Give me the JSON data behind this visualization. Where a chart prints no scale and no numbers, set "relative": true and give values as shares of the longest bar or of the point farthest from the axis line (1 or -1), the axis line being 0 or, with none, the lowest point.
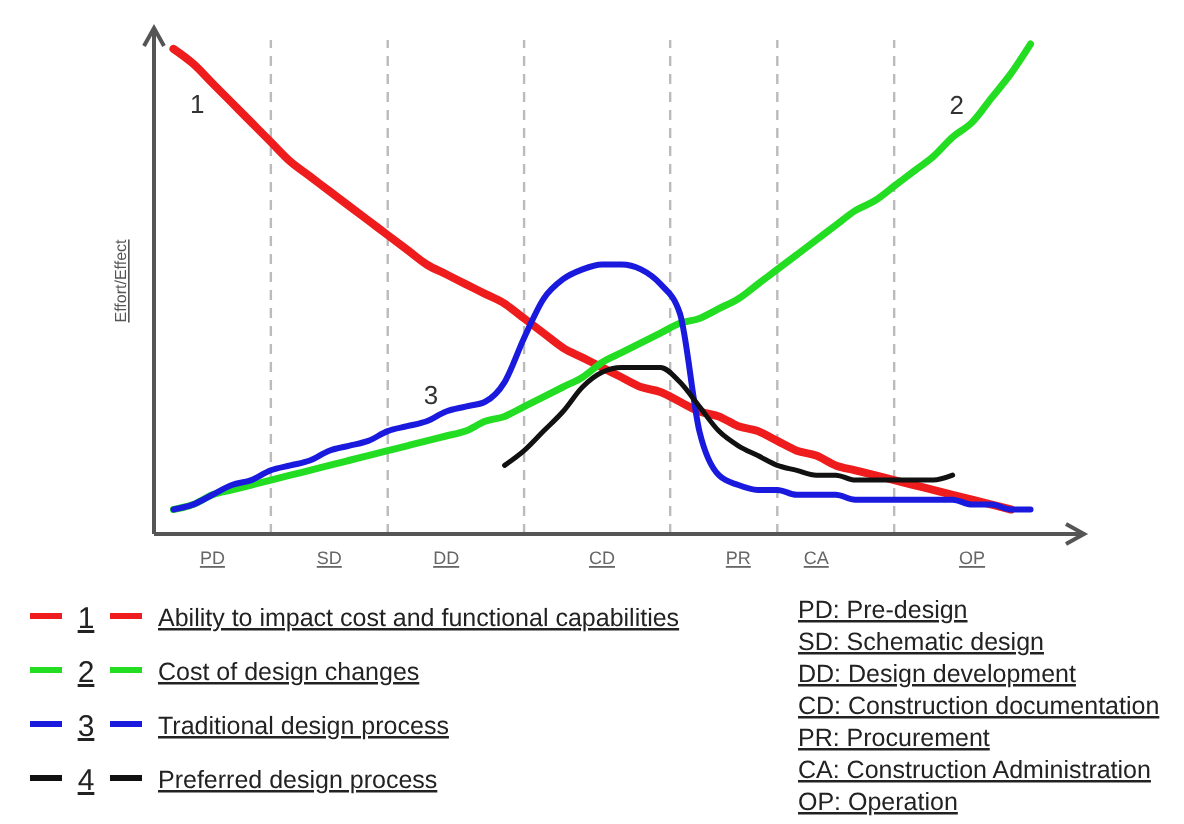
{
  "chart_data": {
    "type": "line",
    "relative": true,
    "ylabel": "Effort/Effect",
    "categories": [
      null,
      null,
      null,
      "PD",
      null,
      null,
      null,
      null,
      null,
      "SD",
      null,
      null,
      null,
      null,
      null,
      "DD",
      null,
      null,
      null,
      null,
      null,
      null,
      null,
      "CD",
      null,
      null,
      null,
      null,
      null,
      null,
      "PR",
      null,
      null,
      null,
      "CA",
      null,
      null,
      null,
      null,
      null,
      null,
      null,
      "OP",
      null,
      null,
      null,
      null
    ],
    "series": [
      {
        "name": "Ability to impact cost and functional capabilities",
        "color": "#ee1c1c",
        "values": [
          null,
          0.99,
          0.96,
          0.92,
          0.88,
          0.84,
          0.8,
          0.76,
          0.73,
          0.7,
          0.67,
          0.64,
          0.61,
          0.58,
          0.55,
          0.53,
          0.51,
          0.49,
          0.47,
          0.44,
          0.41,
          0.38,
          0.36,
          0.34,
          0.32,
          0.3,
          0.29,
          0.27,
          0.25,
          0.24,
          0.22,
          0.21,
          0.19,
          0.17,
          0.16,
          0.14,
          0.13,
          0.12,
          0.11,
          0.1,
          0.09,
          0.08,
          0.07,
          0.06,
          0.05,
          null,
          null
        ]
      },
      {
        "name": "Cost of design changes",
        "color": "#22dd22",
        "values": [
          null,
          0.05,
          0.06,
          0.08,
          0.09,
          0.1,
          0.11,
          0.12,
          0.13,
          0.14,
          0.15,
          0.16,
          0.17,
          0.18,
          0.19,
          0.2,
          0.21,
          0.23,
          0.24,
          0.26,
          0.28,
          0.3,
          0.32,
          0.35,
          0.37,
          0.39,
          0.41,
          0.43,
          0.44,
          0.46,
          0.48,
          0.51,
          0.54,
          0.57,
          0.6,
          0.63,
          0.66,
          0.68,
          0.71,
          0.74,
          0.77,
          0.81,
          0.84,
          0.89,
          0.94,
          1.0,
          null
        ]
      },
      {
        "name": "Traditional design process",
        "color": "#1a1adf",
        "values": [
          null,
          0.05,
          0.06,
          0.08,
          0.1,
          0.11,
          0.13,
          0.14,
          0.15,
          0.17,
          0.18,
          0.19,
          0.21,
          0.22,
          0.23,
          0.25,
          0.26,
          0.27,
          0.31,
          0.4,
          0.48,
          0.52,
          0.54,
          0.55,
          0.55,
          0.54,
          0.51,
          0.45,
          0.21,
          0.12,
          0.1,
          0.09,
          0.09,
          0.08,
          0.08,
          0.08,
          0.07,
          0.07,
          0.07,
          0.07,
          0.07,
          0.07,
          0.06,
          0.06,
          0.05,
          0.05,
          null
        ]
      },
      {
        "name": "Preferred design process",
        "color": "#111111",
        "values": [
          null,
          null,
          null,
          null,
          null,
          null,
          null,
          null,
          null,
          null,
          null,
          null,
          null,
          null,
          null,
          null,
          null,
          null,
          0.14,
          0.17,
          0.21,
          0.25,
          0.3,
          0.33,
          0.34,
          0.34,
          0.34,
          0.31,
          0.26,
          0.21,
          0.18,
          0.16,
          0.14,
          0.13,
          0.12,
          0.12,
          0.11,
          0.11,
          0.11,
          0.11,
          0.11,
          0.12,
          null,
          null,
          null,
          null,
          null
        ]
      }
    ],
    "annotations": [
      {
        "text": "1",
        "x": "PD",
        "y": 0.92
      },
      {
        "text": "2",
        "x": "OP",
        "y": 0.84
      },
      {
        "text": "3",
        "x": "DD",
        "y": 0.25
      },
      "1",
      "2",
      "3",
      "4",
      "PD: Pre-design",
      "SD: Schematic design",
      "DD: Design development",
      "CD: Construction documentation",
      "PR: Procurement",
      "CA: Construction Administration",
      "OP: Operation"
    ],
    "legend": "bottom left",
    "grid": "x",
    "line_style": "solid"
  }
}
